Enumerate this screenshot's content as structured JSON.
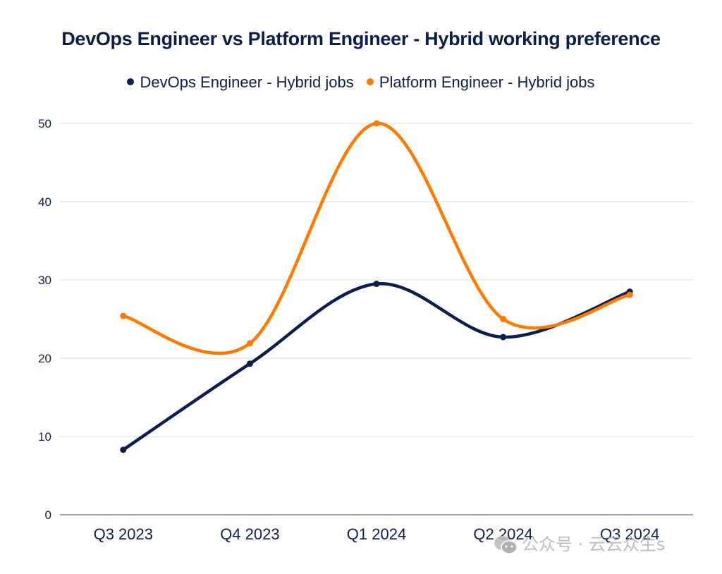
{
  "chart_data": {
    "type": "line",
    "title": "DevOps Engineer vs Platform Engineer - Hybrid working preference",
    "xlabel": "",
    "ylabel": "",
    "categories": [
      "Q3 2023",
      "Q4 2023",
      "Q1 2024",
      "Q2 2024",
      "Q3 2024"
    ],
    "series": [
      {
        "name": "DevOps Engineer - Hybrid jobs",
        "color": "#0b1f4a",
        "values": [
          8.3,
          19.3,
          29.5,
          22.7,
          28.5
        ],
        "smooth": true
      },
      {
        "name": "Platform Engineer - Hybrid jobs",
        "color": "#ff7a00",
        "values": [
          25.4,
          21.9,
          50.0,
          25.0,
          28.1
        ],
        "smooth": true
      }
    ],
    "ylim": [
      0,
      50
    ],
    "yticks": [
      0,
      10,
      20,
      30,
      40,
      50
    ],
    "grid": true,
    "legend_position": "top-center"
  },
  "watermark": {
    "icon": "wechat-icon",
    "text": "公众号 · 云云众生s"
  }
}
